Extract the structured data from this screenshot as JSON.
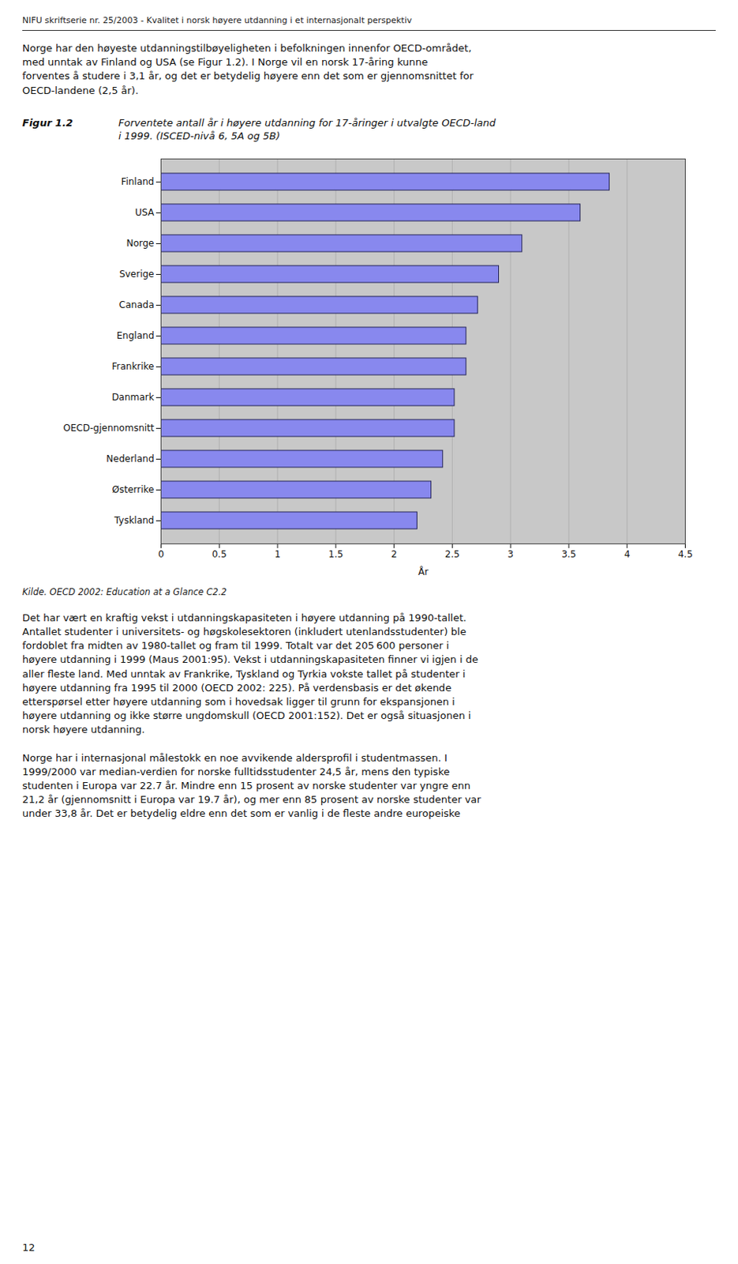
{
  "chart_data": {
    "type": "bar",
    "orientation": "horizontal",
    "title": "Figur 1.2",
    "subtitle": "Forventete antall år i høyere utdanning for 17-åringer i utvalgte OECD-land\ni 1999. (ISCED-nivå 6, 5A og 5B)",
    "categories": [
      "Tyskland",
      "Østerrike",
      "Nederland",
      "OECD-gjennomsnitt",
      "Danmark",
      "Frankrike",
      "England",
      "Canada",
      "Sverige",
      "Norge",
      "USA",
      "Finland"
    ],
    "values": [
      2.2,
      2.32,
      2.42,
      2.52,
      2.52,
      2.62,
      2.62,
      2.72,
      2.9,
      3.1,
      3.6,
      3.85
    ],
    "color": "#8888ee",
    "xlabel": "År",
    "xlim": [
      0,
      4.5
    ],
    "xticks": [
      0,
      0.5,
      1,
      1.5,
      2,
      2.5,
      3,
      3.5,
      4,
      4.5
    ],
    "grid": true,
    "annotations": [
      "NIFU skriftserie nr. 25/2003 - Kvalitet i norsk høyere utdanning i et internasjonalt perspektiv",
      "Norge har den høyeste utdanningstilbøyeligheten i befolkningen innenfor OECD-området,\nmed unntak av Finland og USA (se Figur 1.2). I Norge vil en norsk 17-åring kunne\nforventes å studere i 3,1 år, og det er betydelig høyere enn det som er gjennomsnittet for\nOECD-landene (2,5 år).",
      "Kilde. OECD 2002: Education at a Glance C2.2",
      "Det har vært en kraftig vekst i utdanningskapasiteten i høyere utdanning på 1990-tallet.\nAntallet studenter i universitets- og høgskolesektoren (inkludert utenlandsstudenter) ble\nfordoblet fra midten av 1980-tallet og fram til 1999. Totalt var det 205 600 personer i\nhøyere utdanning i 1999 (Maus 2001:95). Vekst i utdanningskapasiteten finner vi igjen i de\naller fleste land. Med unntak av Frankrike, Tyskland og Tyrkia vokste tallet på studenter i\nhøyere utdanning fra 1995 til 2000 (OECD 2002: 225). På verdensbasis er det økende\netterspørsel etter høyere utdanning som i hovedsak ligger til grunn for ekspansjonen i\nhøyere utdanning og ikke større ungdomskull (OECD 2001:152). Det er også situasjonen i\nnorsk høyere utdanning.",
      "Norge har i internasjonal målestokk en noe avvikende aldersprofil i studentmassen. I\n1999/2000 var median-verdien for norske fulltidsstudenter 24,5 år, mens den typiske\nstudenten i Europa var 22.7 år. Mindre enn 15 prosent av norske studenter var yngre enn\n21,2 år (gjennomsnitt i Europa var 19.7 år), og mer enn 85 prosent av norske studenter var\nunder 33,8 år. Det er betydelig eldre enn det som er vanlig i de fleste andre europeiske",
      "12"
    ]
  }
}
